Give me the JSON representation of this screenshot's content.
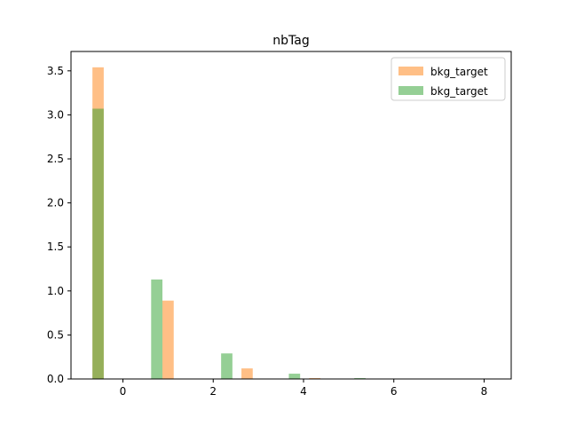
{
  "chart_data": {
    "type": "bar",
    "title": "nbTag",
    "xlabel": "",
    "ylabel": "",
    "xlim": [
      -1.15,
      8.6
    ],
    "ylim": [
      0,
      3.72
    ],
    "x_ticks": [
      0,
      2,
      4,
      6,
      8
    ],
    "x_tick_labels": [
      "0",
      "2",
      "4",
      "6",
      "8"
    ],
    "y_ticks": [
      0.0,
      0.5,
      1.0,
      1.5,
      2.0,
      2.5,
      3.0,
      3.5
    ],
    "y_tick_labels": [
      "0.0",
      "0.5",
      "1.0",
      "1.5",
      "2.0",
      "2.5",
      "3.0",
      "3.5"
    ],
    "grid": false,
    "legend_position": "top-right",
    "bar_width": 0.25,
    "overlay_opacity": 0.5,
    "series": [
      {
        "name": "bkg_target",
        "color": "#ff7f0e",
        "x": [
          -0.55,
          1.0,
          2.75,
          4.25
        ],
        "values": [
          3.54,
          0.89,
          0.12,
          0.01
        ]
      },
      {
        "name": "bkg_target",
        "color": "#2ca02c",
        "x": [
          -0.55,
          0.75,
          2.3,
          3.8,
          5.25
        ],
        "values": [
          3.07,
          1.13,
          0.29,
          0.06,
          0.01
        ]
      }
    ]
  }
}
